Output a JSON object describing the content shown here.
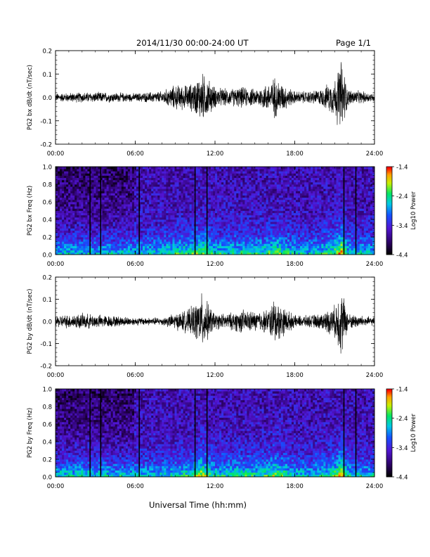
{
  "header": {
    "title": "2014/11/30  00:00-24:00 UT",
    "page": "Page 1/1"
  },
  "footer": {
    "xlabel": "Universal Time (hh:mm)"
  },
  "chart_data": [
    {
      "type": "line",
      "ylabel": "PG2 bx dB/dt (nT/sec)",
      "xlim": [
        0,
        24
      ],
      "ylim": [
        -0.2,
        0.2
      ],
      "yticks": [
        "0.2",
        "0.1",
        "0.0",
        "-0.1",
        "-0.2"
      ],
      "xticks": [
        "00:00",
        "06:00",
        "12:00",
        "18:00",
        "24:00"
      ],
      "series": [
        {
          "x": [
            0,
            2,
            4,
            6,
            8,
            9,
            10,
            10.5,
            11,
            11.5,
            12,
            13,
            14,
            15,
            16,
            16.5,
            17,
            18,
            19,
            20,
            21,
            21.5,
            22,
            23,
            24
          ],
          "amplitude": [
            0.02,
            0.025,
            0.025,
            0.02,
            0.03,
            0.06,
            0.06,
            0.08,
            0.12,
            0.09,
            0.05,
            0.04,
            0.05,
            0.04,
            0.07,
            0.1,
            0.07,
            0.03,
            0.03,
            0.04,
            0.09,
            0.19,
            0.04,
            0.03,
            0.02
          ]
        }
      ]
    },
    {
      "type": "heatmap",
      "ylabel": "PG2 bx Freq (Hz)",
      "xlim": [
        0,
        24
      ],
      "ylim": [
        0,
        1.0
      ],
      "yticks": [
        "1.0",
        "0.8",
        "0.6",
        "0.4",
        "0.2",
        "0.0"
      ],
      "xticks": [
        "00:00",
        "06:00",
        "12:00",
        "18:00",
        "24:00"
      ],
      "colorbar": {
        "label": "Log10 Power",
        "ticks": [
          "-1.4",
          "-2.4",
          "-3.4",
          "-4.4"
        ],
        "range": [
          -4.4,
          -1.4
        ]
      }
    },
    {
      "type": "line",
      "ylabel": "PG2 by dB/dt (nT/sec)",
      "xlim": [
        0,
        24
      ],
      "ylim": [
        -0.2,
        0.2
      ],
      "yticks": [
        "0.2",
        "0.1",
        "0.0",
        "-0.1",
        "-0.2"
      ],
      "xticks": [
        "00:00",
        "06:00",
        "12:00",
        "18:00",
        "24:00"
      ],
      "series": [
        {
          "x": [
            0,
            2,
            4,
            6,
            8,
            9,
            10,
            10.5,
            11,
            11.5,
            12,
            13,
            14,
            15,
            16,
            16.5,
            17,
            18,
            19,
            20,
            21,
            21.5,
            22,
            23,
            24
          ],
          "amplitude": [
            0.03,
            0.04,
            0.03,
            0.02,
            0.02,
            0.04,
            0.06,
            0.09,
            0.14,
            0.09,
            0.04,
            0.04,
            0.06,
            0.05,
            0.06,
            0.12,
            0.08,
            0.03,
            0.03,
            0.04,
            0.08,
            0.18,
            0.04,
            0.03,
            0.02
          ]
        }
      ]
    },
    {
      "type": "heatmap",
      "ylabel": "PG2 by Freq (Hz)",
      "xlim": [
        0,
        24
      ],
      "ylim": [
        0,
        1.0
      ],
      "yticks": [
        "1.0",
        "0.8",
        "0.6",
        "0.4",
        "0.2",
        "0.0"
      ],
      "xticks": [
        "00:00",
        "06:00",
        "12:00",
        "18:00",
        "24:00"
      ],
      "colorbar": {
        "label": "Log10 Power",
        "ticks": [
          "-1.4",
          "-2.4",
          "-3.4",
          "-4.4"
        ],
        "range": [
          -4.4,
          -1.4
        ]
      }
    }
  ]
}
